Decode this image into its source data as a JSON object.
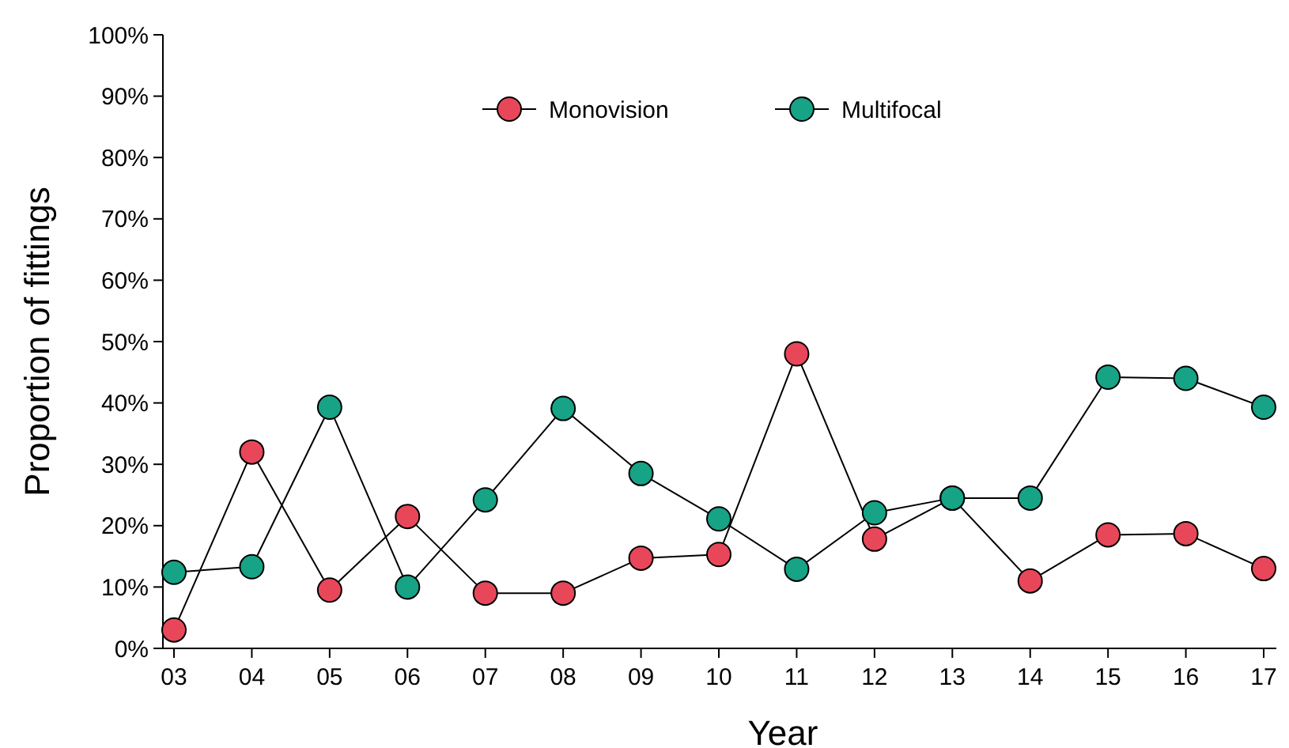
{
  "chart_data": {
    "type": "line",
    "xlabel": "Year",
    "ylabel": "Proportion of fittings",
    "categories": [
      "03",
      "04",
      "05",
      "06",
      "07",
      "08",
      "09",
      "10",
      "11",
      "12",
      "13",
      "14",
      "15",
      "16",
      "17"
    ],
    "series": [
      {
        "name": "Monovision",
        "color": "#e8475a",
        "values": [
          3,
          32,
          9.5,
          21.5,
          9,
          9,
          14.7,
          15.3,
          48,
          17.8,
          24.5,
          11,
          18.5,
          18.7,
          13
        ]
      },
      {
        "name": "Multifocal",
        "color": "#17a386",
        "values": [
          12.4,
          13.3,
          39.3,
          10,
          24.2,
          39.1,
          28.5,
          21.1,
          12.9,
          22.1,
          24.5,
          24.5,
          44.2,
          44,
          39.3
        ]
      }
    ],
    "ylim": [
      0,
      100
    ],
    "yticks": [
      {
        "value": 0,
        "label": "0%"
      },
      {
        "value": 10,
        "label": "10%"
      },
      {
        "value": 20,
        "label": "20%"
      },
      {
        "value": 30,
        "label": "30%"
      },
      {
        "value": 40,
        "label": "40%"
      },
      {
        "value": 50,
        "label": "50%"
      },
      {
        "value": 60,
        "label": "60%"
      },
      {
        "value": 70,
        "label": "70%"
      },
      {
        "value": 80,
        "label": "80%"
      },
      {
        "value": 90,
        "label": "90%"
      },
      {
        "value": 100,
        "label": "100%"
      }
    ],
    "grid": false,
    "legend": "top",
    "marker": "circle",
    "line_style": "solid"
  }
}
